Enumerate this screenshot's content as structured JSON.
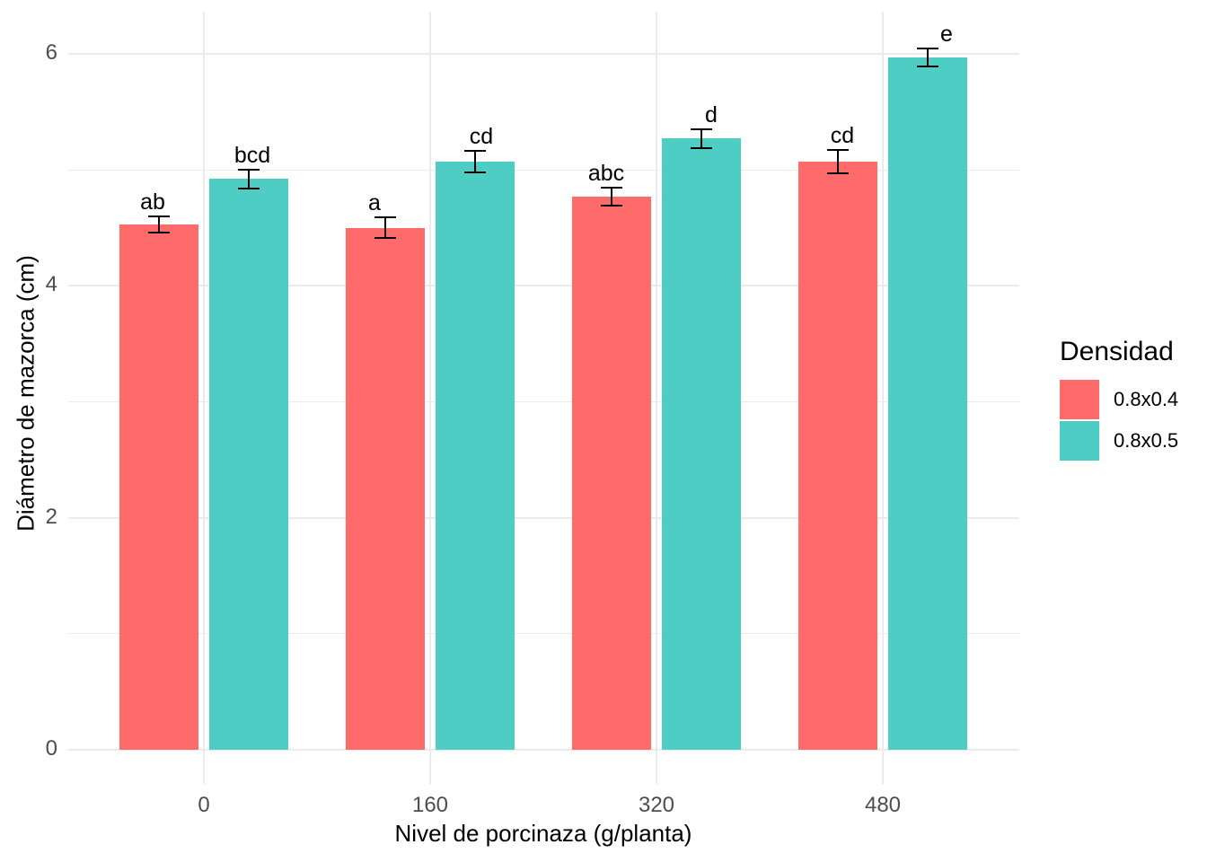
{
  "chart_data": {
    "type": "bar",
    "title": "",
    "xlabel": "Nivel de porcinaza (g/planta)",
    "ylabel": "Diámetro de mazorca (cm)",
    "categories": [
      "0",
      "160",
      "320",
      "480"
    ],
    "series": [
      {
        "name": "0.8x0.4",
        "color": "#FF6B6B",
        "values": [
          4.53,
          4.5,
          4.77,
          5.07
        ],
        "errors": [
          0.07,
          0.09,
          0.08,
          0.1
        ],
        "sig_letters": [
          "ab",
          "a",
          "abc",
          "cd"
        ]
      },
      {
        "name": "0.8x0.5",
        "color": "#4ECDC4",
        "values": [
          4.92,
          5.07,
          5.27,
          5.97
        ],
        "errors": [
          0.08,
          0.09,
          0.08,
          0.08
        ],
        "sig_letters": [
          "bcd",
          "cd",
          "d",
          "e"
        ]
      }
    ],
    "y_tick_labels": [
      "0",
      "2",
      "4",
      "6"
    ],
    "y_major_gridlines": [
      0,
      2,
      4,
      6
    ],
    "y_minor_gridlines": [
      1,
      3,
      5
    ],
    "ylim": [
      0,
      6.4
    ],
    "grid": true,
    "error_bars": true,
    "legend_title": "Densidad",
    "legend_position": "right"
  },
  "legend": {
    "title": "Densidad",
    "items": [
      {
        "label": "0.8x0.4",
        "color": "#FF6B6B"
      },
      {
        "label": "0.8x0.5",
        "color": "#4ECDC4"
      }
    ]
  },
  "colors": {
    "series_1": "#FF6B6B",
    "series_2": "#4ECDC4",
    "gridline": "#EBEBEB",
    "axis_text": "#4D4D4D",
    "error_bar": "#000000",
    "background": "#FFFFFF"
  }
}
